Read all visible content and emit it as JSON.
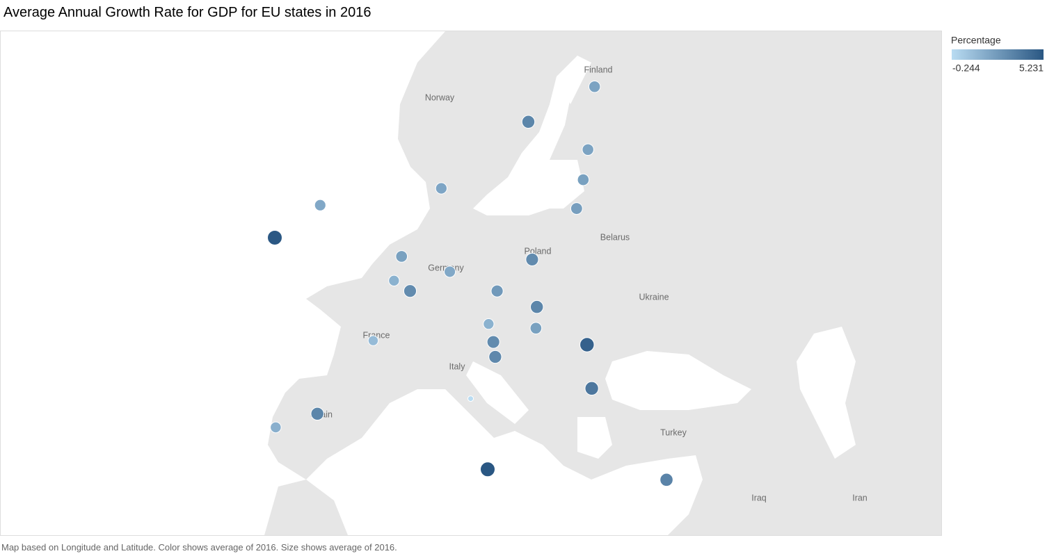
{
  "title": "Average Annual Growth Rate for GDP for EU states in 2016",
  "footnote": "Map based on Longitude and Latitude.  Color shows average of 2016.  Size shows average of 2016.",
  "legend": {
    "title": "Percentage",
    "min": -0.244,
    "max": 5.231,
    "color_low": "#b9dcf2",
    "color_high": "#2a5783"
  },
  "place_labels": [
    "Finland",
    "Norway",
    "Poland",
    "Belarus",
    "Germany",
    "Ukraine",
    "France",
    "Italy",
    "Spain",
    "Turkey",
    "Iraq",
    "Iran"
  ],
  "points": [
    {
      "lon": 25.8,
      "lat": 61.9,
      "value": 2.1
    },
    {
      "lon": 18.8,
      "lat": 60.1,
      "value": 3.3
    },
    {
      "lon": 25.1,
      "lat": 58.6,
      "value": 2.1
    },
    {
      "lon": 24.6,
      "lat": 56.9,
      "value": 2.2
    },
    {
      "lon": 23.9,
      "lat": 55.2,
      "value": 2.3
    },
    {
      "lon": 9.6,
      "lat": 56.4,
      "value": 2.0
    },
    {
      "lon": -3.2,
      "lat": 55.4,
      "value": 1.9
    },
    {
      "lon": -8.0,
      "lat": 53.4,
      "value": 5.2
    },
    {
      "lon": 5.4,
      "lat": 52.2,
      "value": 2.2
    },
    {
      "lon": 10.5,
      "lat": 51.2,
      "value": 1.9
    },
    {
      "lon": 4.6,
      "lat": 50.6,
      "value": 1.5
    },
    {
      "lon": 6.3,
      "lat": 49.9,
      "value": 3.1
    },
    {
      "lon": 19.2,
      "lat": 52.0,
      "value": 3.1
    },
    {
      "lon": 15.5,
      "lat": 49.9,
      "value": 2.5
    },
    {
      "lon": 19.7,
      "lat": 48.8,
      "value": 3.3
    },
    {
      "lon": 14.6,
      "lat": 47.6,
      "value": 1.5
    },
    {
      "lon": 19.6,
      "lat": 47.3,
      "value": 2.2
    },
    {
      "lon": 15.1,
      "lat": 46.3,
      "value": 3.1
    },
    {
      "lon": 15.3,
      "lat": 45.2,
      "value": 3.2
    },
    {
      "lon": 25.0,
      "lat": 46.1,
      "value": 4.8
    },
    {
      "lon": 25.5,
      "lat": 42.8,
      "value": 3.9
    },
    {
      "lon": 2.4,
      "lat": 46.4,
      "value": 1.1
    },
    {
      "lon": 12.7,
      "lat": 42.0,
      "value": -0.244
    },
    {
      "lon": -3.5,
      "lat": 40.8,
      "value": 3.3
    },
    {
      "lon": -7.9,
      "lat": 39.7,
      "value": 1.6
    },
    {
      "lon": 14.5,
      "lat": 36.2,
      "value": 5.231
    },
    {
      "lon": 33.4,
      "lat": 35.3,
      "value": 3.4
    }
  ]
}
